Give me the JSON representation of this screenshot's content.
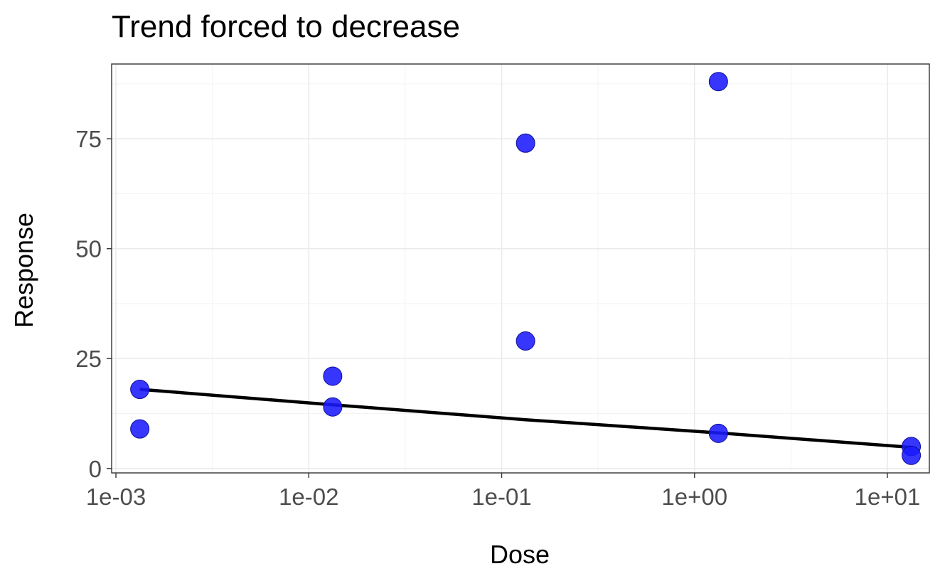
{
  "chart_data": {
    "type": "scatter",
    "title": "Trend forced to decrease",
    "xlabel": "Dose",
    "ylabel": "Response",
    "x_scale": "log10",
    "xlim": [
      0.00095,
      16.5
    ],
    "ylim": [
      -1,
      92
    ],
    "x_ticks": [
      {
        "value": 0.001,
        "label": "1e-03"
      },
      {
        "value": 0.01,
        "label": "1e-02"
      },
      {
        "value": 0.1,
        "label": "1e-01"
      },
      {
        "value": 1,
        "label": "1e+00"
      },
      {
        "value": 10,
        "label": "1e+01"
      }
    ],
    "y_ticks": [
      {
        "value": 0,
        "label": "0"
      },
      {
        "value": 25,
        "label": "25"
      },
      {
        "value": 50,
        "label": "50"
      },
      {
        "value": 75,
        "label": "75"
      }
    ],
    "grid": true,
    "legend": "none",
    "points": {
      "color": "#1a1aff",
      "data": [
        {
          "x": 0.00133,
          "y": 18
        },
        {
          "x": 0.00133,
          "y": 9
        },
        {
          "x": 0.0133,
          "y": 21
        },
        {
          "x": 0.0133,
          "y": 14
        },
        {
          "x": 0.133,
          "y": 74
        },
        {
          "x": 0.133,
          "y": 29
        },
        {
          "x": 1.33,
          "y": 88
        },
        {
          "x": 1.33,
          "y": 8
        },
        {
          "x": 13.3,
          "y": 5
        },
        {
          "x": 13.3,
          "y": 3
        }
      ]
    },
    "trend_line": {
      "color": "#000000",
      "data": [
        {
          "x": 0.00133,
          "y": 18
        },
        {
          "x": 0.0133,
          "y": 14.5
        },
        {
          "x": 0.133,
          "y": 11.1
        },
        {
          "x": 1.33,
          "y": 8.1
        },
        {
          "x": 13.3,
          "y": 4.8
        }
      ]
    }
  }
}
